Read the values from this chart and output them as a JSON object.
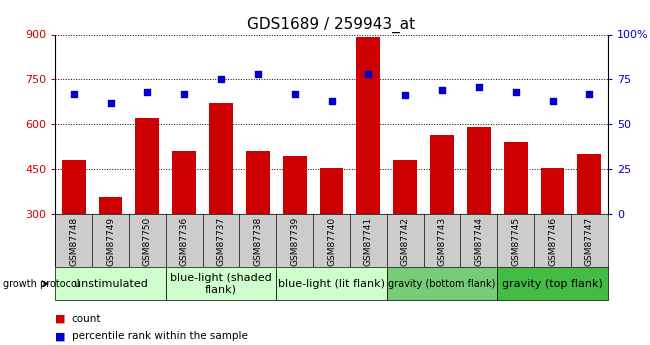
{
  "title": "GDS1689 / 259943_at",
  "samples": [
    "GSM87748",
    "GSM87749",
    "GSM87750",
    "GSM87736",
    "GSM87737",
    "GSM87738",
    "GSM87739",
    "GSM87740",
    "GSM87741",
    "GSM87742",
    "GSM87743",
    "GSM87744",
    "GSM87745",
    "GSM87746",
    "GSM87747"
  ],
  "counts": [
    480,
    355,
    620,
    510,
    670,
    510,
    495,
    455,
    890,
    480,
    565,
    590,
    540,
    455,
    500
  ],
  "percentiles": [
    67,
    62,
    68,
    67,
    75,
    78,
    67,
    63,
    78,
    66,
    69,
    71,
    68,
    63,
    67
  ],
  "y_min": 300,
  "y_max": 900,
  "y_ticks": [
    300,
    450,
    600,
    750,
    900
  ],
  "y2_ticks": [
    0,
    25,
    50,
    75,
    100
  ],
  "bar_color": "#cc0000",
  "dot_color": "#0000cc",
  "groups": [
    {
      "label": "unstimulated",
      "start": 0,
      "end": 3,
      "color": "#ccffcc",
      "fontsize": 8
    },
    {
      "label": "blue-light (shaded\nflank)",
      "start": 3,
      "end": 6,
      "color": "#ccffcc",
      "fontsize": 8
    },
    {
      "label": "blue-light (lit flank)",
      "start": 6,
      "end": 9,
      "color": "#ccffcc",
      "fontsize": 8
    },
    {
      "label": "gravity (bottom flank)",
      "start": 9,
      "end": 12,
      "color": "#77cc77",
      "fontsize": 7
    },
    {
      "label": "gravity (top flank)",
      "start": 12,
      "end": 15,
      "color": "#44bb44",
      "fontsize": 8
    }
  ],
  "growth_protocol_label": "growth protocol",
  "legend_count": "count",
  "legend_percentile": "percentile rank within the sample",
  "sample_bg_color": "#cccccc",
  "plot_bg_color": "#ffffff",
  "title_fontsize": 11,
  "axis_fontsize": 8,
  "sample_fontsize": 6.5,
  "legend_fontsize": 8
}
